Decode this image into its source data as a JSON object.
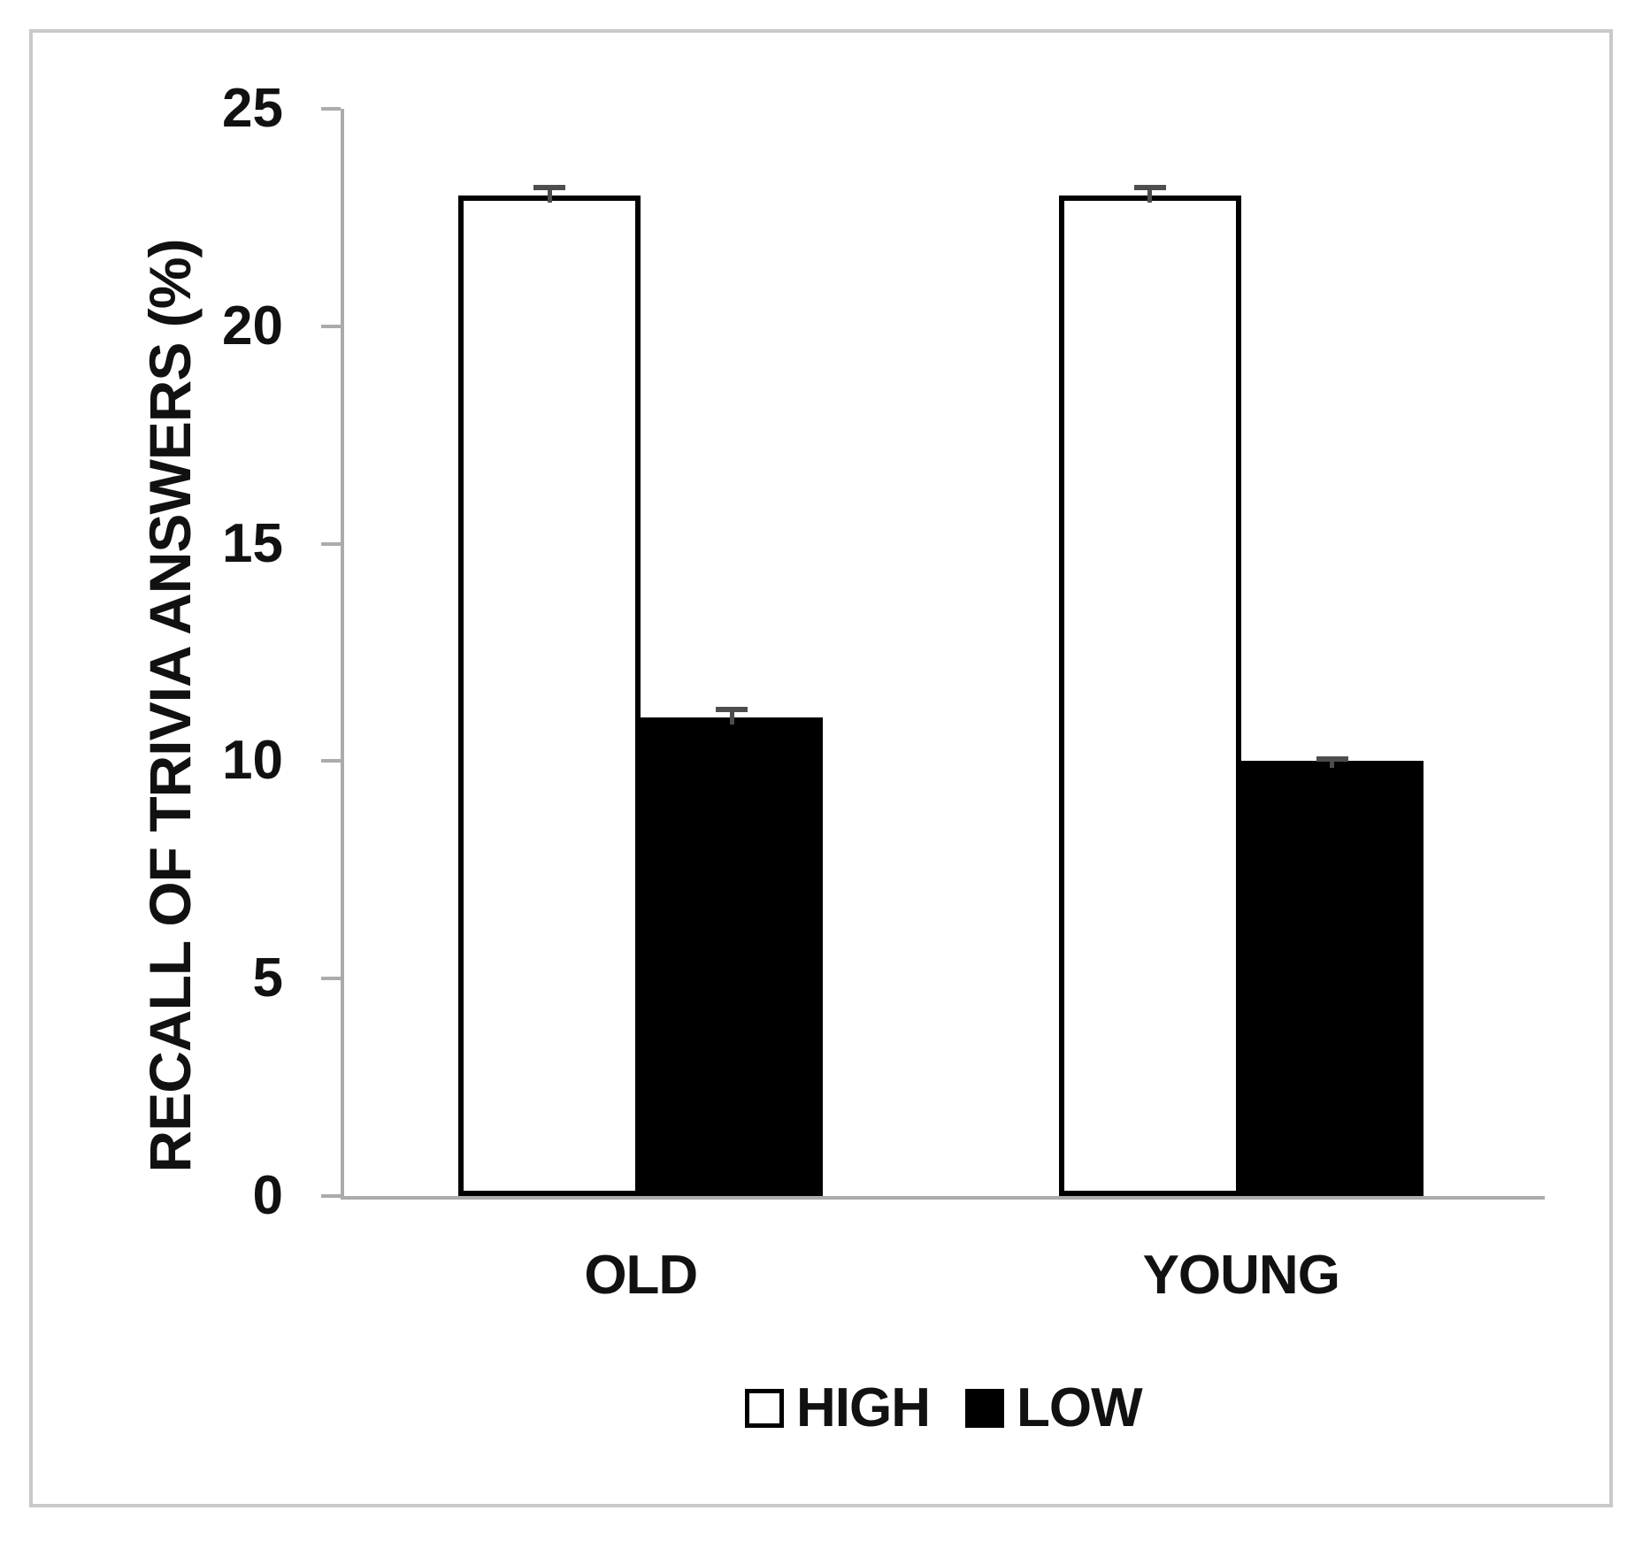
{
  "chart_data": {
    "type": "bar",
    "title": "",
    "xlabel": "",
    "ylabel": "RECALL OF TRIVIA ANSWERS (%)",
    "categories": [
      "OLD",
      "YOUNG"
    ],
    "series": [
      {
        "name": "HIGH",
        "fill": "#ffffff",
        "values": [
          23,
          23
        ],
        "errors": [
          0.25,
          0.25
        ]
      },
      {
        "name": "LOW",
        "fill": "#000000",
        "values": [
          11,
          10
        ],
        "errors": [
          0.25,
          0.1
        ]
      }
    ],
    "ylim": [
      0,
      25
    ],
    "ytick_step": 5,
    "ytick_labels": [
      "0",
      "5",
      "10",
      "15",
      "20",
      "25"
    ],
    "grid": false,
    "legend_position": "bottom",
    "error_bars": true
  },
  "colors": {
    "bar_high_fill": "#ffffff",
    "bar_low_fill": "#000000",
    "bar_outline": "#000000",
    "axis_line": "#ababab",
    "error_bar": "#4d4d4d",
    "frame_border": "#c9c9c9",
    "text": "#111111"
  }
}
